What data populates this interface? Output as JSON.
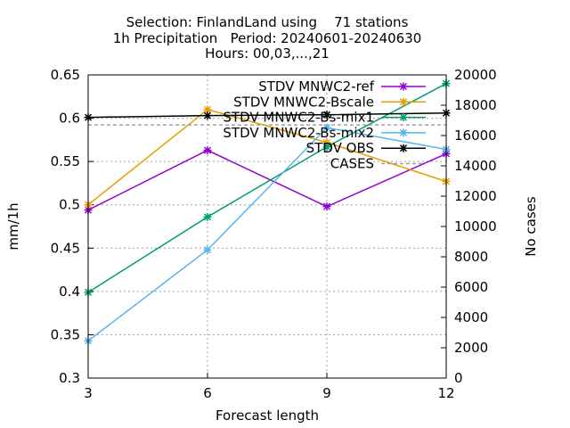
{
  "chart_data": {
    "type": "line",
    "title": "Selection: FinlandLand using    71 stations",
    "subtitle": "1h Precipitation   Period: 20240601-20240630",
    "subtitle2": "Hours: 00,03,...,21",
    "xlabel": "Forecast length",
    "ylabel": "mm/1h",
    "y2label": "No cases",
    "x": [
      3,
      6,
      9,
      12
    ],
    "xlim": [
      3,
      12
    ],
    "ylim": [
      0.3,
      0.65
    ],
    "y2lim": [
      0,
      20000
    ],
    "xticks": [
      "3",
      "6",
      "9",
      "12"
    ],
    "yticks": [
      "0.3",
      "0.35",
      "0.4",
      "0.45",
      "0.5",
      "0.55",
      "0.6",
      "0.65"
    ],
    "y2ticks": [
      "0",
      "2000",
      "4000",
      "6000",
      "8000",
      "10000",
      "12000",
      "14000",
      "16000",
      "18000",
      "20000"
    ],
    "grid": true,
    "legend_position": "top-right",
    "series": [
      {
        "name": "STDV MNWC2-ref",
        "color": "#9400d3",
        "axis": "y",
        "values": [
          0.494,
          0.563,
          0.498,
          0.559
        ]
      },
      {
        "name": "STDV MNWC2-Bscale",
        "color": "#e69f00",
        "axis": "y",
        "values": [
          0.5,
          0.61,
          0.572,
          0.527
        ]
      },
      {
        "name": "STDV MNWC2-Bs-mix1",
        "color": "#009e73",
        "axis": "y",
        "values": [
          0.399,
          0.486,
          0.567,
          0.64
        ]
      },
      {
        "name": "STDV MNWC2-Bs-mix2",
        "color": "#56b4e9",
        "axis": "y",
        "values": [
          0.343,
          0.448,
          0.589,
          0.564
        ]
      },
      {
        "name": "STDV OBS",
        "color": "#000000",
        "axis": "y",
        "values": [
          0.601,
          0.603,
          0.604,
          0.606
        ]
      },
      {
        "name": "CASES",
        "color": "#a0a0a0",
        "axis": "y2",
        "dashed": true,
        "values": [
          16700,
          16700,
          16700,
          16700
        ]
      }
    ]
  }
}
